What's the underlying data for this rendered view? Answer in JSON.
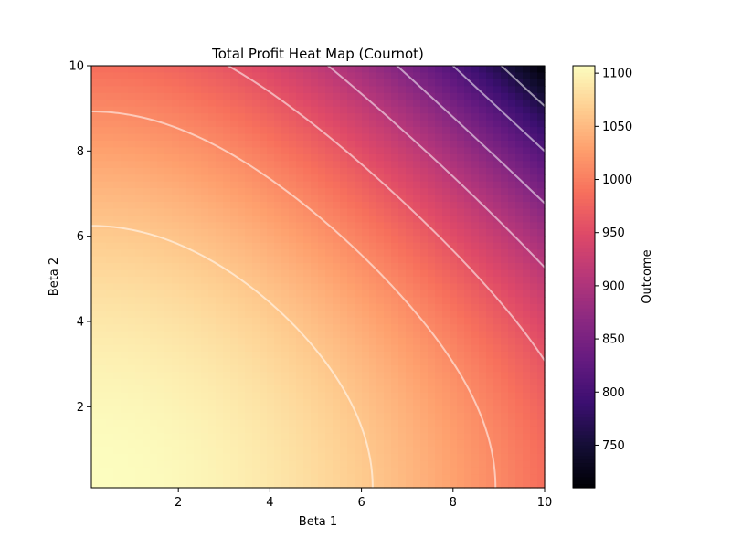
{
  "chart_data": {
    "type": "heatmap",
    "title": "Total Profit Heat Map (Cournot)",
    "xlabel": "Beta 1",
    "ylabel": "Beta 2",
    "colorbar_label": "Outcome",
    "colormap": "magma",
    "xlim": [
      0.1,
      10
    ],
    "ylim": [
      0.1,
      10
    ],
    "xticks": [
      2,
      4,
      6,
      8,
      10
    ],
    "yticks": [
      2,
      4,
      6,
      8,
      10
    ],
    "value_range": [
      710,
      1107
    ],
    "colorbar_ticks": [
      750,
      800,
      850,
      900,
      950,
      1000,
      1050,
      1100
    ],
    "corner_values": {
      "beta1_0.1_beta2_0.1": 1107,
      "beta1_10_beta2_0.1": 985,
      "beta1_0.1_beta2_10": 985,
      "beta1_10_beta2_10": 710
    },
    "contour_levels": [
      760,
      810,
      860,
      910,
      960,
      1010,
      1060
    ],
    "contour_color": "#ffffff",
    "grid": false
  }
}
